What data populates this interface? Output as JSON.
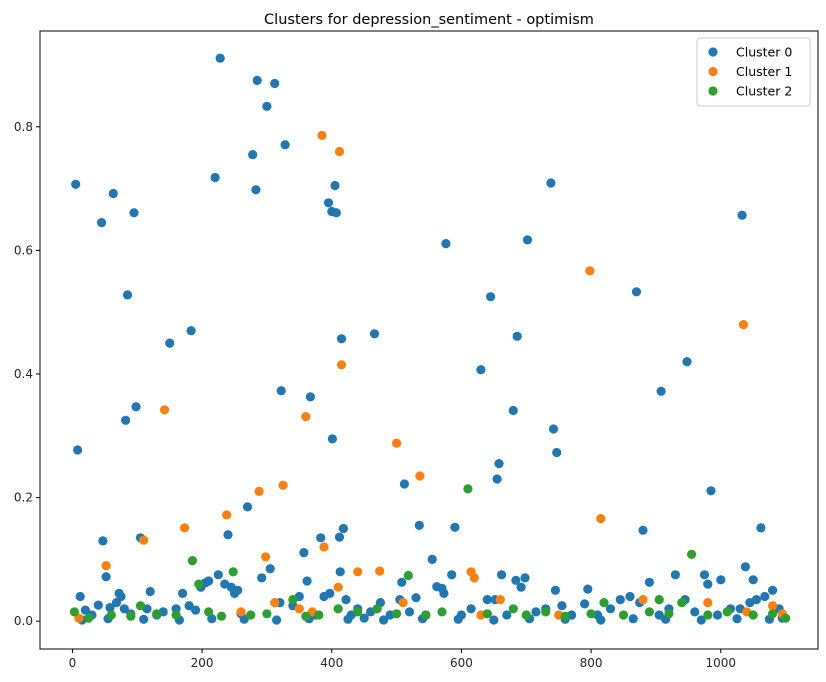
{
  "chart_data": {
    "type": "scatter",
    "title": "Clusters for depression_sentiment - optimism",
    "xlabel": "",
    "ylabel": "",
    "xlim": [
      -50,
      1150
    ],
    "ylim": [
      -0.045,
      0.955
    ],
    "xticks": [
      0,
      200,
      400,
      600,
      800,
      1000
    ],
    "yticks": [
      0.0,
      0.2,
      0.4,
      0.6,
      0.8
    ],
    "grid": false,
    "legend_position": "top-right",
    "series": [
      {
        "name": "Cluster 0",
        "color": "#1f77b4",
        "points": [
          [
            5,
            0.707
          ],
          [
            8,
            0.277
          ],
          [
            12,
            0.04
          ],
          [
            20,
            0.018
          ],
          [
            30,
            0.01
          ],
          [
            40,
            0.026
          ],
          [
            45,
            0.645
          ],
          [
            47,
            0.13
          ],
          [
            52,
            0.072
          ],
          [
            58,
            0.022
          ],
          [
            63,
            0.692
          ],
          [
            68,
            0.03
          ],
          [
            72,
            0.045
          ],
          [
            75,
            0.04
          ],
          [
            80,
            0.02
          ],
          [
            82,
            0.325
          ],
          [
            85,
            0.528
          ],
          [
            90,
            0.012
          ],
          [
            95,
            0.661
          ],
          [
            98,
            0.347
          ],
          [
            105,
            0.135
          ],
          [
            115,
            0.02
          ],
          [
            120,
            0.048
          ],
          [
            130,
            0.01
          ],
          [
            140,
            0.015
          ],
          [
            150,
            0.45
          ],
          [
            160,
            0.02
          ],
          [
            170,
            0.045
          ],
          [
            180,
            0.025
          ],
          [
            183,
            0.47
          ],
          [
            190,
            0.018
          ],
          [
            198,
            0.055
          ],
          [
            205,
            0.062
          ],
          [
            210,
            0.065
          ],
          [
            220,
            0.718
          ],
          [
            225,
            0.075
          ],
          [
            228,
            0.911
          ],
          [
            235,
            0.06
          ],
          [
            240,
            0.14
          ],
          [
            245,
            0.055
          ],
          [
            250,
            0.045
          ],
          [
            255,
            0.05
          ],
          [
            260,
            0.012
          ],
          [
            270,
            0.185
          ],
          [
            278,
            0.755
          ],
          [
            283,
            0.698
          ],
          [
            285,
            0.875
          ],
          [
            292,
            0.07
          ],
          [
            300,
            0.833
          ],
          [
            305,
            0.085
          ],
          [
            312,
            0.87
          ],
          [
            320,
            0.03
          ],
          [
            322,
            0.373
          ],
          [
            328,
            0.771
          ],
          [
            340,
            0.025
          ],
          [
            350,
            0.04
          ],
          [
            357,
            0.111
          ],
          [
            362,
            0.065
          ],
          [
            367,
            0.363
          ],
          [
            375,
            0.01
          ],
          [
            383,
            0.135
          ],
          [
            388,
            0.04
          ],
          [
            395,
            0.677
          ],
          [
            397,
            0.045
          ],
          [
            400,
            0.663
          ],
          [
            401,
            0.295
          ],
          [
            405,
            0.705
          ],
          [
            407,
            0.661
          ],
          [
            412,
            0.136
          ],
          [
            413,
            0.08
          ],
          [
            415,
            0.457
          ],
          [
            418,
            0.15
          ],
          [
            422,
            0.035
          ],
          [
            430,
            0.01
          ],
          [
            440,
            0.02
          ],
          [
            450,
            0.005
          ],
          [
            460,
            0.015
          ],
          [
            466,
            0.465
          ],
          [
            475,
            0.03
          ],
          [
            490,
            0.01
          ],
          [
            505,
            0.035
          ],
          [
            508,
            0.063
          ],
          [
            512,
            0.222
          ],
          [
            520,
            0.015
          ],
          [
            530,
            0.038
          ],
          [
            535,
            0.155
          ],
          [
            545,
            0.01
          ],
          [
            555,
            0.1
          ],
          [
            562,
            0.056
          ],
          [
            570,
            0.053
          ],
          [
            573,
            0.045
          ],
          [
            576,
            0.611
          ],
          [
            590,
            0.152
          ],
          [
            585,
            0.075
          ],
          [
            600,
            0.01
          ],
          [
            615,
            0.02
          ],
          [
            630,
            0.407
          ],
          [
            640,
            0.035
          ],
          [
            645,
            0.525
          ],
          [
            652,
            0.035
          ],
          [
            655,
            0.23
          ],
          [
            658,
            0.255
          ],
          [
            662,
            0.075
          ],
          [
            670,
            0.01
          ],
          [
            680,
            0.341
          ],
          [
            684,
            0.066
          ],
          [
            686,
            0.461
          ],
          [
            692,
            0.055
          ],
          [
            698,
            0.07
          ],
          [
            702,
            0.617
          ],
          [
            715,
            0.015
          ],
          [
            730,
            0.02
          ],
          [
            738,
            0.709
          ],
          [
            742,
            0.311
          ],
          [
            745,
            0.05
          ],
          [
            747,
            0.273
          ],
          [
            755,
            0.025
          ],
          [
            770,
            0.01
          ],
          [
            790,
            0.028
          ],
          [
            795,
            0.052
          ],
          [
            810,
            0.01
          ],
          [
            830,
            0.02
          ],
          [
            845,
            0.035
          ],
          [
            860,
            0.04
          ],
          [
            870,
            0.533
          ],
          [
            875,
            0.03
          ],
          [
            880,
            0.147
          ],
          [
            890,
            0.063
          ],
          [
            905,
            0.01
          ],
          [
            908,
            0.372
          ],
          [
            920,
            0.02
          ],
          [
            930,
            0.075
          ],
          [
            945,
            0.035
          ],
          [
            948,
            0.42
          ],
          [
            960,
            0.015
          ],
          [
            975,
            0.075
          ],
          [
            980,
            0.06
          ],
          [
            985,
            0.211
          ],
          [
            995,
            0.01
          ],
          [
            1000,
            0.067
          ],
          [
            1015,
            0.02
          ],
          [
            1030,
            0.02
          ],
          [
            1033,
            0.657
          ],
          [
            1038,
            0.088
          ],
          [
            1045,
            0.03
          ],
          [
            1050,
            0.067
          ],
          [
            1055,
            0.035
          ],
          [
            1062,
            0.151
          ],
          [
            1068,
            0.04
          ],
          [
            1080,
            0.05
          ],
          [
            1090,
            0.02
          ],
          [
            1095,
            0.005
          ],
          [
            15,
            0.002
          ],
          [
            55,
            0.004
          ],
          [
            110,
            0.003
          ],
          [
            165,
            0.002
          ],
          [
            215,
            0.004
          ],
          [
            265,
            0.003
          ],
          [
            315,
            0.002
          ],
          [
            365,
            0.004
          ],
          [
            425,
            0.003
          ],
          [
            480,
            0.002
          ],
          [
            540,
            0.004
          ],
          [
            595,
            0.003
          ],
          [
            650,
            0.002
          ],
          [
            705,
            0.004
          ],
          [
            760,
            0.003
          ],
          [
            815,
            0.002
          ],
          [
            865,
            0.004
          ],
          [
            915,
            0.003
          ],
          [
            970,
            0.002
          ],
          [
            1025,
            0.004
          ],
          [
            1075,
            0.003
          ]
        ]
      },
      {
        "name": "Cluster 1",
        "color": "#ff7f0e",
        "points": [
          [
            10,
            0.005
          ],
          [
            52,
            0.09
          ],
          [
            110,
            0.131
          ],
          [
            142,
            0.342
          ],
          [
            173,
            0.151
          ],
          [
            238,
            0.172
          ],
          [
            260,
            0.015
          ],
          [
            288,
            0.21
          ],
          [
            298,
            0.104
          ],
          [
            312,
            0.03
          ],
          [
            325,
            0.22
          ],
          [
            350,
            0.02
          ],
          [
            360,
            0.331
          ],
          [
            370,
            0.015
          ],
          [
            385,
            0.786
          ],
          [
            388,
            0.12
          ],
          [
            410,
            0.055
          ],
          [
            412,
            0.76
          ],
          [
            415,
            0.415
          ],
          [
            440,
            0.08
          ],
          [
            474,
            0.081
          ],
          [
            500,
            0.288
          ],
          [
            510,
            0.03
          ],
          [
            536,
            0.235
          ],
          [
            615,
            0.08
          ],
          [
            620,
            0.07
          ],
          [
            630,
            0.01
          ],
          [
            660,
            0.035
          ],
          [
            750,
            0.01
          ],
          [
            798,
            0.567
          ],
          [
            815,
            0.166
          ],
          [
            880,
            0.035
          ],
          [
            980,
            0.03
          ],
          [
            1035,
            0.48
          ],
          [
            1040,
            0.015
          ],
          [
            1080,
            0.025
          ],
          [
            1095,
            0.012
          ]
        ]
      },
      {
        "name": "Cluster 2",
        "color": "#2ca02c",
        "points": [
          [
            3,
            0.015
          ],
          [
            25,
            0.005
          ],
          [
            60,
            0.01
          ],
          [
            90,
            0.008
          ],
          [
            105,
            0.025
          ],
          [
            130,
            0.012
          ],
          [
            160,
            0.01
          ],
          [
            185,
            0.098
          ],
          [
            195,
            0.06
          ],
          [
            210,
            0.015
          ],
          [
            230,
            0.008
          ],
          [
            248,
            0.08
          ],
          [
            275,
            0.01
          ],
          [
            300,
            0.012
          ],
          [
            340,
            0.035
          ],
          [
            360,
            0.008
          ],
          [
            380,
            0.01
          ],
          [
            410,
            0.02
          ],
          [
            440,
            0.015
          ],
          [
            470,
            0.02
          ],
          [
            500,
            0.012
          ],
          [
            518,
            0.074
          ],
          [
            545,
            0.01
          ],
          [
            570,
            0.015
          ],
          [
            610,
            0.214
          ],
          [
            640,
            0.012
          ],
          [
            680,
            0.02
          ],
          [
            700,
            0.01
          ],
          [
            730,
            0.015
          ],
          [
            760,
            0.008
          ],
          [
            800,
            0.012
          ],
          [
            820,
            0.03
          ],
          [
            850,
            0.01
          ],
          [
            890,
            0.015
          ],
          [
            905,
            0.035
          ],
          [
            920,
            0.012
          ],
          [
            940,
            0.03
          ],
          [
            955,
            0.108
          ],
          [
            980,
            0.01
          ],
          [
            1010,
            0.015
          ],
          [
            1050,
            0.01
          ],
          [
            1080,
            0.012
          ],
          [
            1100,
            0.005
          ]
        ]
      }
    ]
  }
}
